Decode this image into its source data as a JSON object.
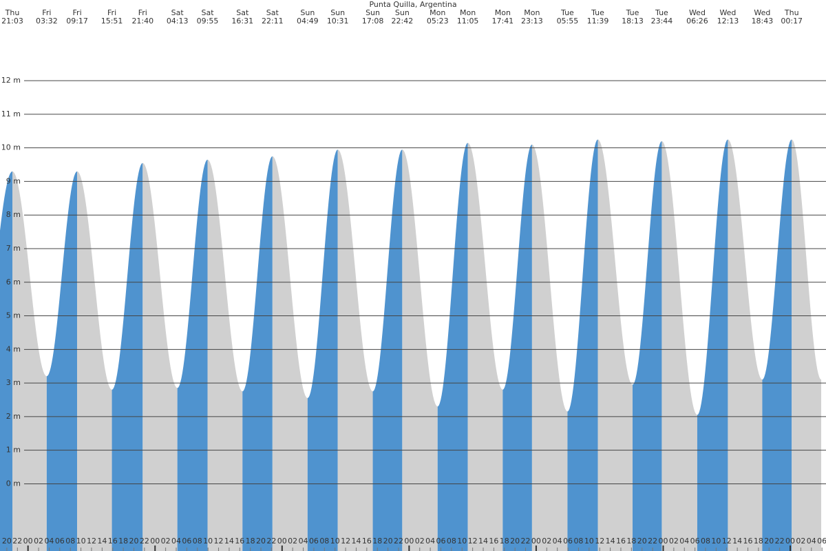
{
  "chart_data": {
    "type": "area",
    "title": "Punta Quilla, Argentina",
    "x_days": [
      "Thu",
      "Fri",
      "Fri",
      "Fri",
      "Fri",
      "Sat",
      "Sat",
      "Sat",
      "Sat",
      "Sun",
      "Sun",
      "Sun",
      "Sun",
      "Mon",
      "Mon",
      "Mon",
      "Mon",
      "Tue",
      "Tue",
      "Tue",
      "Tue",
      "Wed",
      "Wed",
      "Wed",
      "Thu"
    ],
    "x": [
      "21:03",
      "03:32",
      "09:17",
      "15:51",
      "21:40",
      "04:13",
      "09:55",
      "16:31",
      "22:11",
      "04:49",
      "10:31",
      "17:08",
      "22:42",
      "05:23",
      "11:05",
      "17:41",
      "23:13",
      "05:55",
      "11:39",
      "18:13",
      "23:44",
      "06:26",
      "12:13",
      "18:43",
      "00:17"
    ],
    "values": [
      9.3,
      3.2,
      9.3,
      2.8,
      9.55,
      2.85,
      9.65,
      2.75,
      9.75,
      2.55,
      9.95,
      2.75,
      9.95,
      2.3,
      10.15,
      2.8,
      10.1,
      2.15,
      10.25,
      2.95,
      10.2,
      2.05,
      10.25,
      3.1,
      10.25
    ],
    "hour_ticks": [
      "20",
      "22",
      "00",
      "02",
      "04",
      "06",
      "08",
      "10",
      "12",
      "14",
      "16",
      "18",
      "20",
      "22",
      "00",
      "02",
      "04",
      "06",
      "08",
      "10",
      "12",
      "14",
      "16",
      "18",
      "20",
      "22",
      "00",
      "02",
      "04",
      "06",
      "08",
      "10",
      "12",
      "14",
      "16",
      "18",
      "20",
      "22",
      "00",
      "02",
      "04",
      "06",
      "08",
      "10",
      "12",
      "14",
      "16",
      "18",
      "20",
      "22",
      "00",
      "02",
      "04",
      "06",
      "08",
      "10",
      "12",
      "14",
      "16",
      "18",
      "20",
      "22",
      "00",
      "02",
      "04",
      "06",
      "08",
      "10",
      "12",
      "14",
      "16",
      "18",
      "20",
      "22",
      "00",
      "02",
      "04",
      "06"
    ],
    "ylim": [
      -2,
      14.4
    ],
    "yticks": [
      {
        "value": 0,
        "label": "0 m"
      },
      {
        "value": 1,
        "label": "1 m"
      },
      {
        "value": 2,
        "label": "2 m"
      },
      {
        "value": 3,
        "label": "3 m"
      },
      {
        "value": 4,
        "label": "4 m"
      },
      {
        "value": 5,
        "label": "5 m"
      },
      {
        "value": 6,
        "label": "6 m"
      },
      {
        "value": 7,
        "label": "7 m"
      },
      {
        "value": 8,
        "label": "8 m"
      },
      {
        "value": 9,
        "label": "9 m"
      },
      {
        "value": 10,
        "label": "10 m"
      },
      {
        "value": 11,
        "label": "11 m"
      },
      {
        "value": 12,
        "label": "12 m"
      }
    ],
    "rising_color": "#4f93cf",
    "falling_color": "#d0d0d0",
    "grid": true
  }
}
